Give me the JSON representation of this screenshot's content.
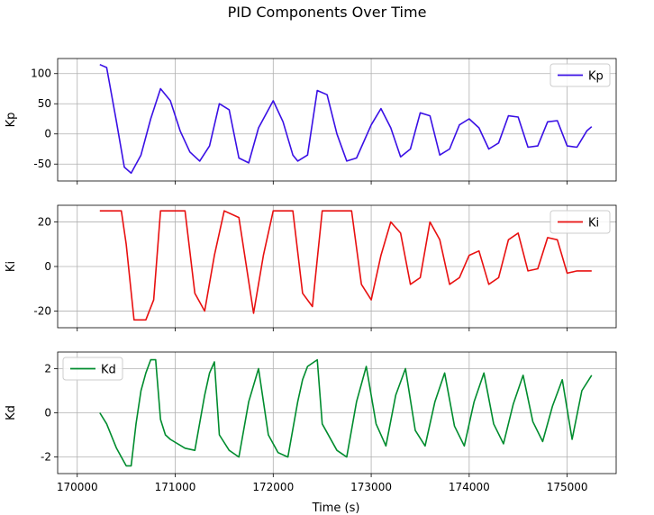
{
  "chart_data": {
    "title": "PID Components Over Time",
    "xlabel": "Time (s)",
    "xlim": [
      169800,
      175500
    ],
    "xticks": [
      170000,
      171000,
      172000,
      173000,
      174000,
      175000
    ],
    "grid": true,
    "panels": [
      {
        "type": "line",
        "name": "Kp",
        "ylabel": "Kp",
        "color": "#3a10e5",
        "ylim": [
          -78,
          125
        ],
        "yticks": [
          -50,
          0,
          50,
          100
        ],
        "legend_position": "upper-right",
        "x": [
          170230,
          170300,
          170400,
          170480,
          170550,
          170650,
          170750,
          170850,
          170950,
          171050,
          171150,
          171250,
          171350,
          171450,
          171550,
          171650,
          171750,
          171850,
          172000,
          172100,
          172200,
          172250,
          172350,
          172450,
          172550,
          172650,
          172750,
          172850,
          173000,
          173100,
          173200,
          173300,
          173400,
          173500,
          173600,
          173700,
          173800,
          173900,
          174000,
          174100,
          174200,
          174300,
          174400,
          174500,
          174600,
          174700,
          174800,
          174900,
          175000,
          175100,
          175200,
          175250
        ],
        "values": [
          115,
          110,
          20,
          -55,
          -65,
          -35,
          25,
          75,
          55,
          5,
          -30,
          -45,
          -20,
          50,
          40,
          -40,
          -48,
          10,
          55,
          20,
          -35,
          -45,
          -35,
          72,
          65,
          0,
          -45,
          -40,
          15,
          42,
          10,
          -38,
          -25,
          35,
          30,
          -35,
          -25,
          15,
          25,
          10,
          -25,
          -15,
          30,
          28,
          -22,
          -20,
          20,
          22,
          -20,
          -22,
          5,
          12
        ]
      },
      {
        "type": "line",
        "name": "Ki",
        "ylabel": "Ki",
        "color": "#e81010",
        "ylim": [
          -27.5,
          27.5
        ],
        "yticks": [
          -20,
          0,
          20
        ],
        "legend_position": "upper-right",
        "x": [
          170230,
          170450,
          170500,
          170580,
          170700,
          170780,
          170850,
          171100,
          171200,
          171300,
          171400,
          171500,
          171650,
          171800,
          171900,
          172000,
          172200,
          172300,
          172400,
          172500,
          172800,
          172900,
          173000,
          173100,
          173200,
          173300,
          173400,
          173500,
          173600,
          173700,
          173800,
          173900,
          174000,
          174100,
          174200,
          174300,
          174400,
          174500,
          174600,
          174700,
          174800,
          174900,
          175000,
          175100,
          175200,
          175250
        ],
        "values": [
          25,
          25,
          10,
          -24,
          -24,
          -15,
          25,
          25,
          -12,
          -20,
          5,
          25,
          22,
          -21,
          5,
          25,
          25,
          -12,
          -18,
          25,
          25,
          -8,
          -15,
          5,
          20,
          15,
          -8,
          -5,
          20,
          12,
          -8,
          -5,
          5,
          7,
          -8,
          -5,
          12,
          15,
          -2,
          -1,
          13,
          12,
          -3,
          -2,
          -2,
          -2
        ]
      },
      {
        "type": "line",
        "name": "Kd",
        "ylabel": "Kd",
        "color": "#008c2e",
        "ylim": [
          -2.75,
          2.75
        ],
        "yticks": [
          -2,
          0,
          2
        ],
        "legend_position": "upper-left",
        "x": [
          170230,
          170300,
          170400,
          170500,
          170550,
          170600,
          170650,
          170700,
          170750,
          170800,
          170850,
          170900,
          170950,
          171100,
          171200,
          171300,
          171350,
          171400,
          171450,
          171550,
          171650,
          171750,
          171850,
          171950,
          172050,
          172150,
          172250,
          172300,
          172350,
          172450,
          172500,
          172650,
          172750,
          172850,
          172950,
          173050,
          173150,
          173250,
          173350,
          173450,
          173550,
          173650,
          173750,
          173850,
          173950,
          174050,
          174150,
          174250,
          174350,
          174450,
          174550,
          174650,
          174750,
          174850,
          174950,
          175050,
          175150,
          175250
        ],
        "values": [
          0,
          -0.5,
          -1.6,
          -2.4,
          -2.4,
          -0.5,
          1,
          1.8,
          2.4,
          2.4,
          -0.3,
          -1.0,
          -1.2,
          -1.6,
          -1.7,
          0.8,
          1.8,
          2.3,
          -1.0,
          -1.7,
          -2.0,
          0.5,
          2.0,
          -1.0,
          -1.8,
          -2.0,
          0.5,
          1.5,
          2.1,
          2.4,
          -0.5,
          -1.7,
          -2.0,
          0.5,
          2.1,
          -0.5,
          -1.5,
          0.8,
          2.0,
          -0.8,
          -1.5,
          0.5,
          1.8,
          -0.6,
          -1.5,
          0.5,
          1.8,
          -0.5,
          -1.4,
          0.4,
          1.7,
          -0.4,
          -1.3,
          0.3,
          1.5,
          -1.2,
          1.0,
          1.7
        ]
      }
    ]
  }
}
